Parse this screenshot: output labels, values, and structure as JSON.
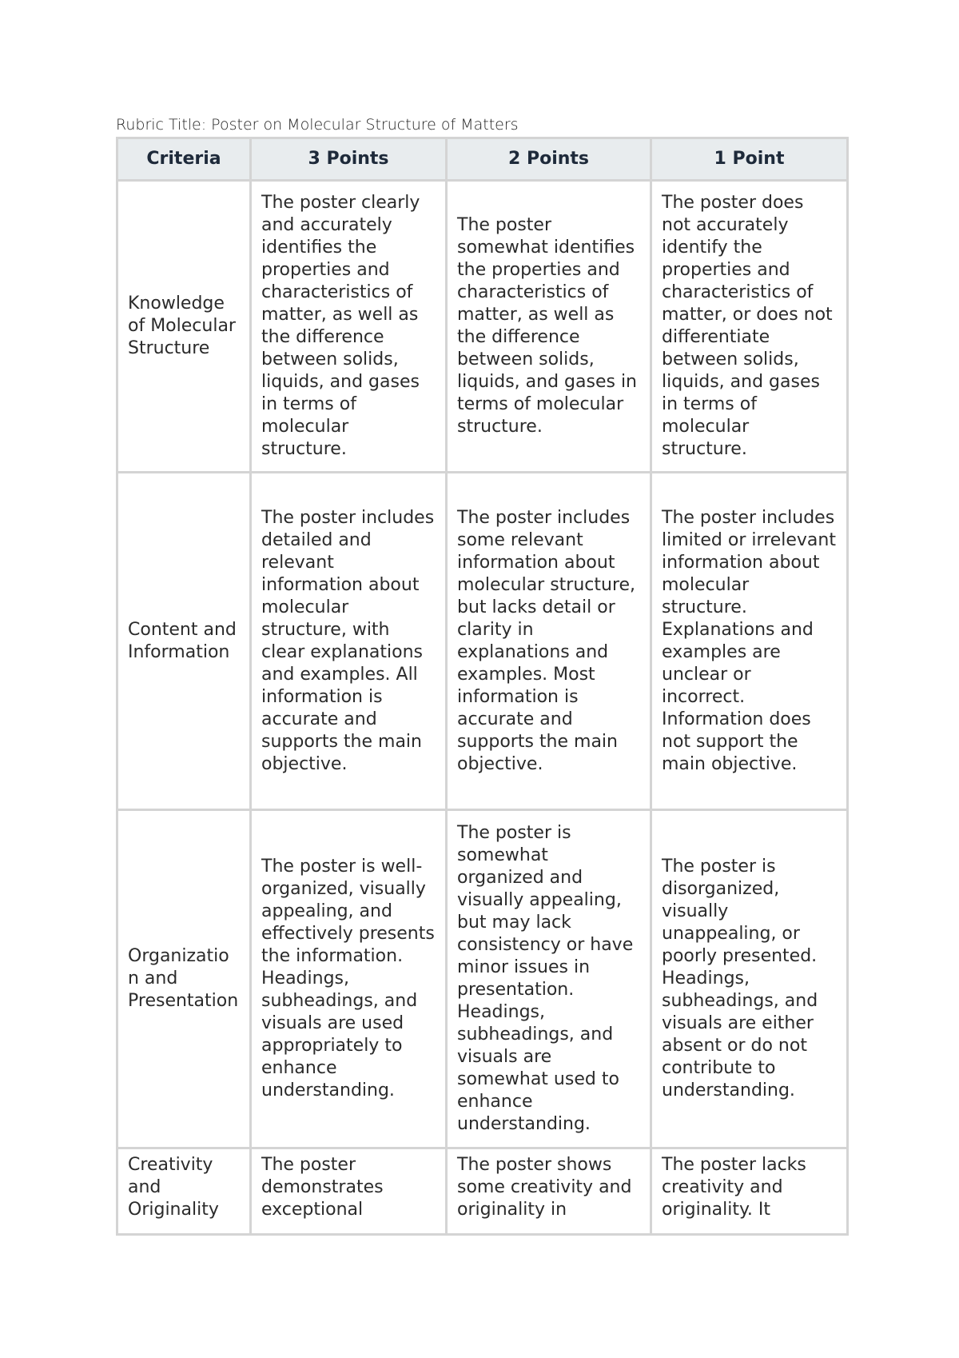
{
  "title": "Rubric Title: Poster on Molecular Structure of Matters",
  "table": {
    "header": [
      "Criteria",
      "3 Points",
      "2 Points",
      "1 Point"
    ],
    "rows": [
      [
        "Knowledge of Molecular Structure",
        "The poster clearly and accurately identifies the properties and characteristics of matter, as well as the difference between solids, liquids, and gases in terms of molecular structure.",
        "The poster somewhat identifies the properties and characteristics of matter, as well as the difference between solids, liquids, and gases in terms of molecular structure.",
        "The poster does not accurately identify the properties and characteristics of matter, or does not differentiate between solids, liquids, and gases in terms of molecular structure."
      ],
      [
        "Content and Information",
        "The poster includes detailed and relevant information about molecular structure, with clear explanations and examples. All information is accurate and supports the main objective.",
        "The poster includes some relevant information about molecular structure, but lacks detail or clarity in explanations and examples. Most information is accurate and supports the main objective.",
        "The poster includes limited or irrelevant information about molecular structure. Explanations and examples are unclear or incorrect. Information does not support the main objective."
      ],
      [
        "Organization and Presentation",
        "The poster is well-organized, visually appealing, and effectively presents the information. Headings, subheadings, and visuals are used appropriately to enhance understanding.",
        "The poster is somewhat organized and visually appealing, but may lack consistency or have minor issues in presentation. Headings, subheadings, and visuals are somewhat used to enhance understanding.",
        "The poster is disorganized, visually unappealing, or poorly presented. Headings, subheadings, and visuals are either absent or do not contribute to understanding."
      ],
      [
        "Creativity and Originality",
        "The poster demonstrates exceptional",
        "The poster shows some creativity and originality in",
        "The poster lacks creativity and originality. It"
      ]
    ]
  }
}
